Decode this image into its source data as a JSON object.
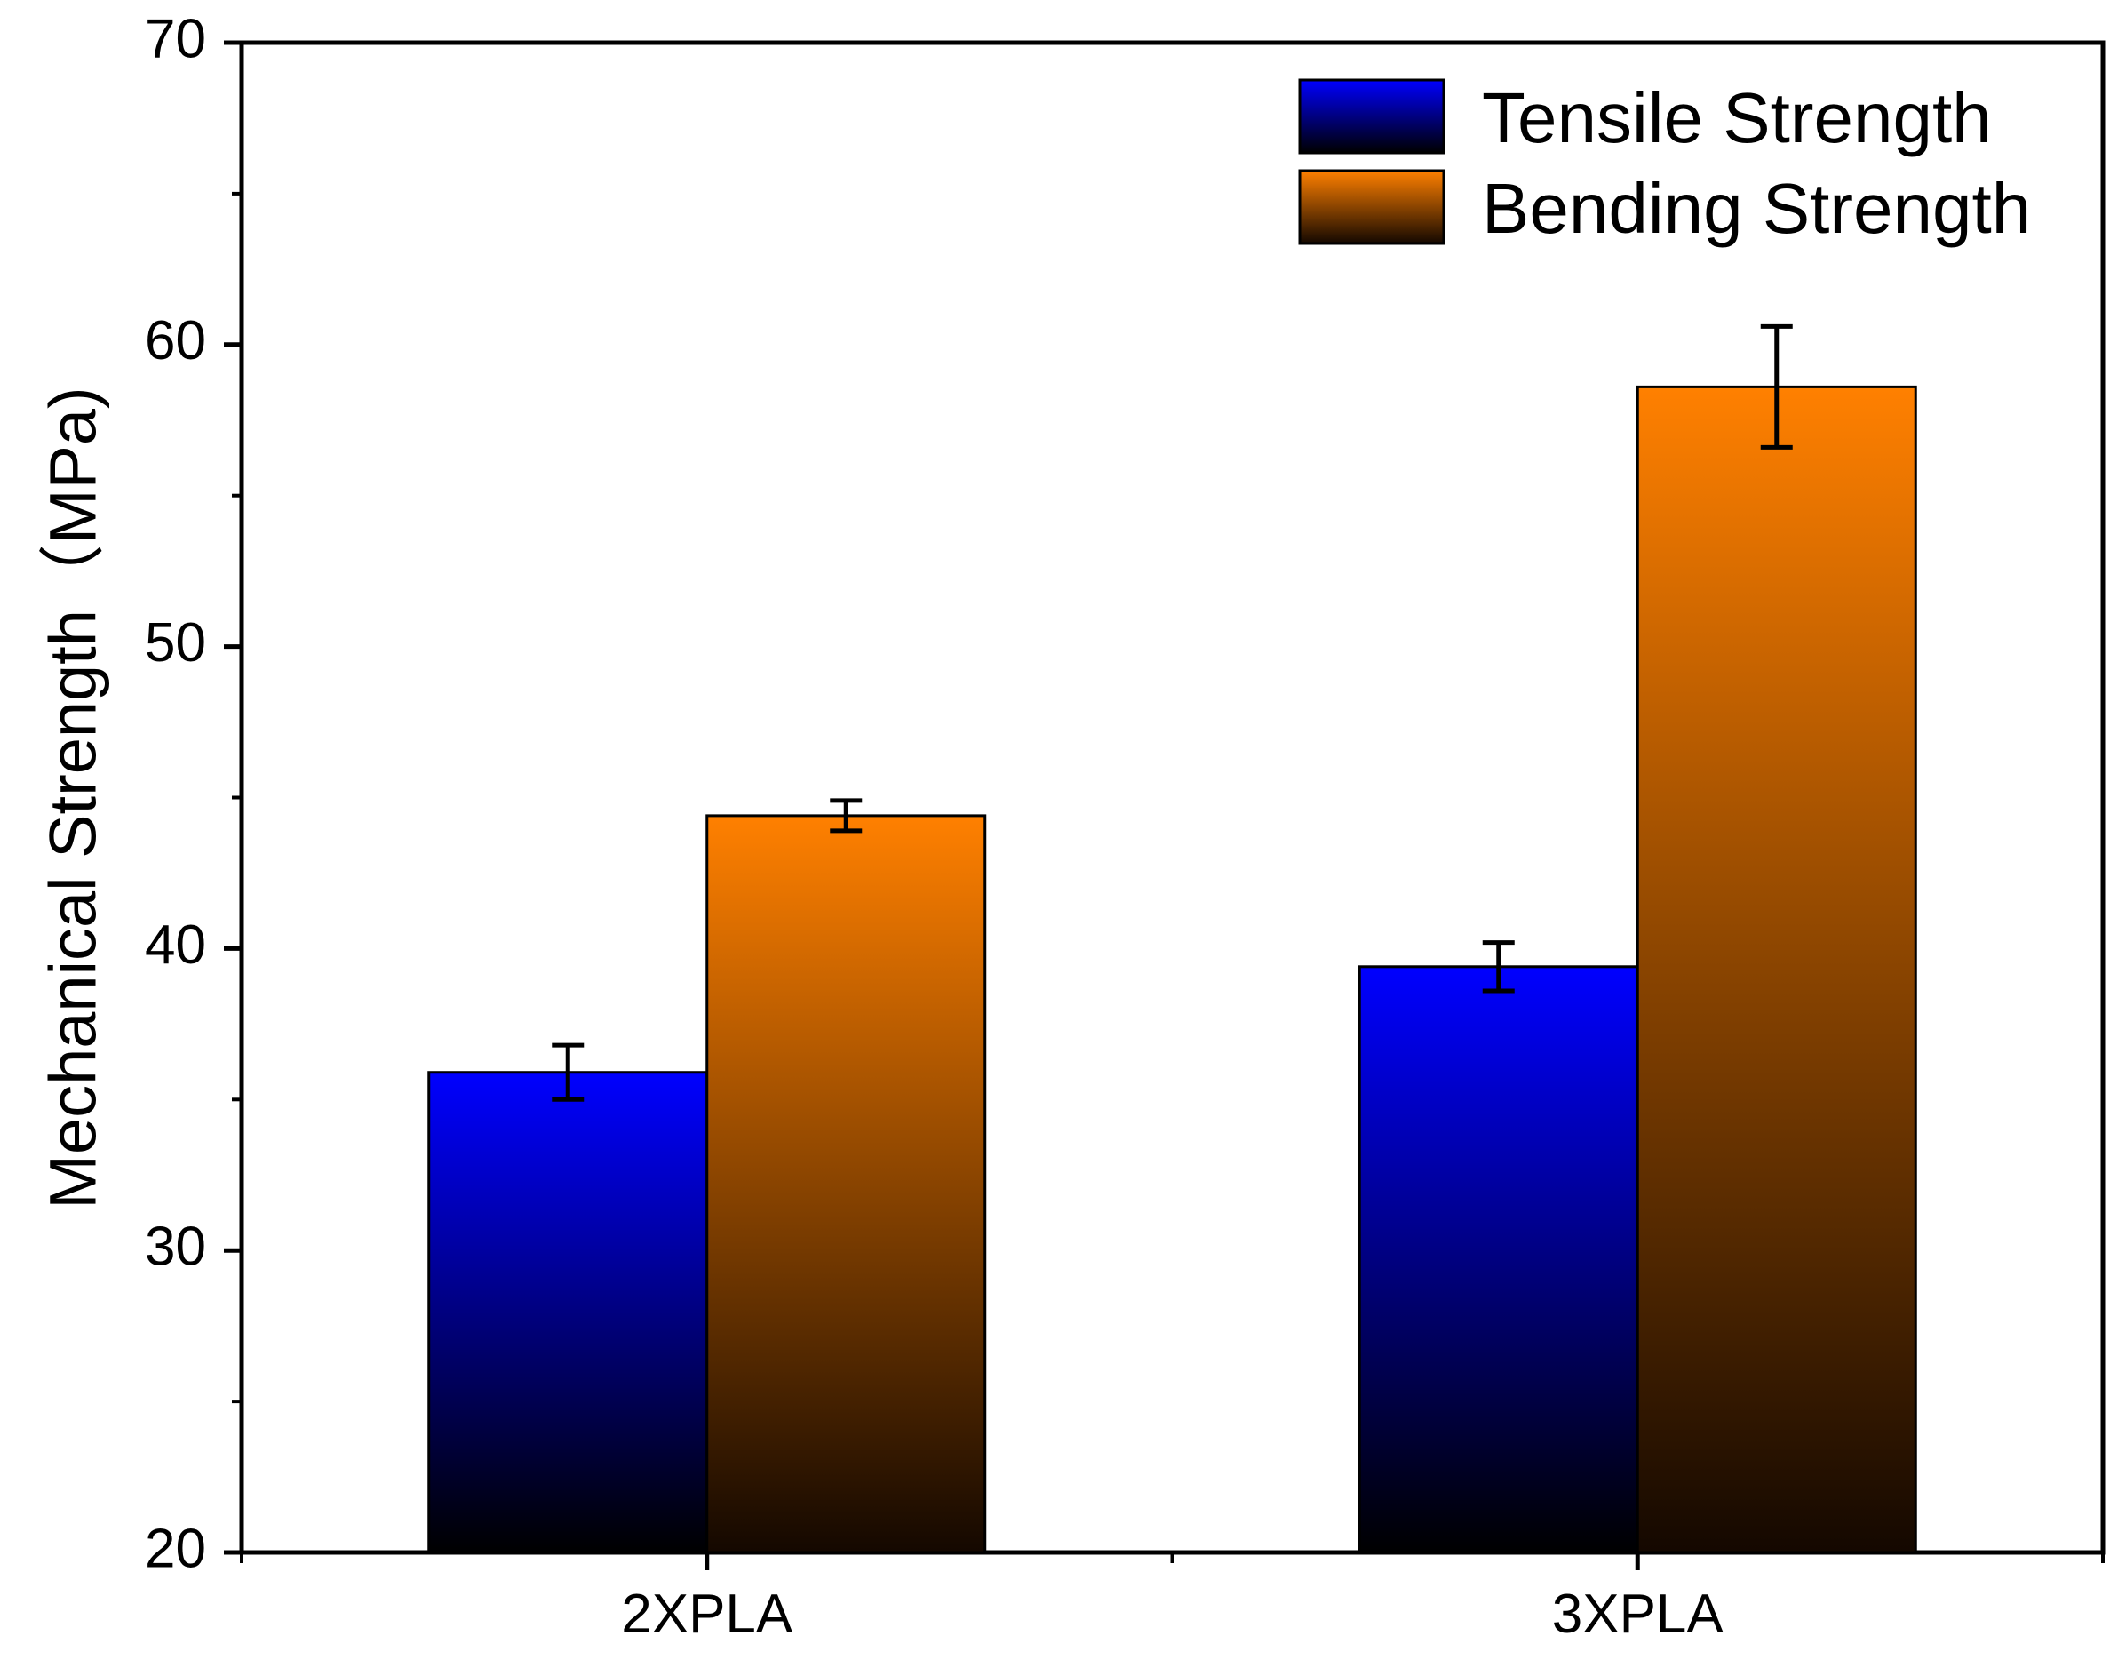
{
  "chart_data": {
    "type": "bar",
    "title": "",
    "xlabel": "",
    "ylabel": "Mechanical Strength（MPa)",
    "categories": [
      "2XPLA",
      "3XPLA"
    ],
    "ylim": [
      20,
      70
    ],
    "yticks": [
      "20",
      "30",
      "40",
      "50",
      "60",
      "70"
    ],
    "series": [
      {
        "name": "Tensile Strength",
        "values": [
          35.9,
          39.4
        ],
        "errors": [
          0.9,
          0.8
        ],
        "color_top": "#0000ff",
        "color_bottom": "#000000"
      },
      {
        "name": "Bending Strength",
        "values": [
          44.4,
          58.6
        ],
        "errors": [
          0.5,
          2.0
        ],
        "color_top": "#ff8000",
        "color_bottom": "#140800"
      }
    ],
    "legend": {
      "position": "top-right"
    }
  }
}
